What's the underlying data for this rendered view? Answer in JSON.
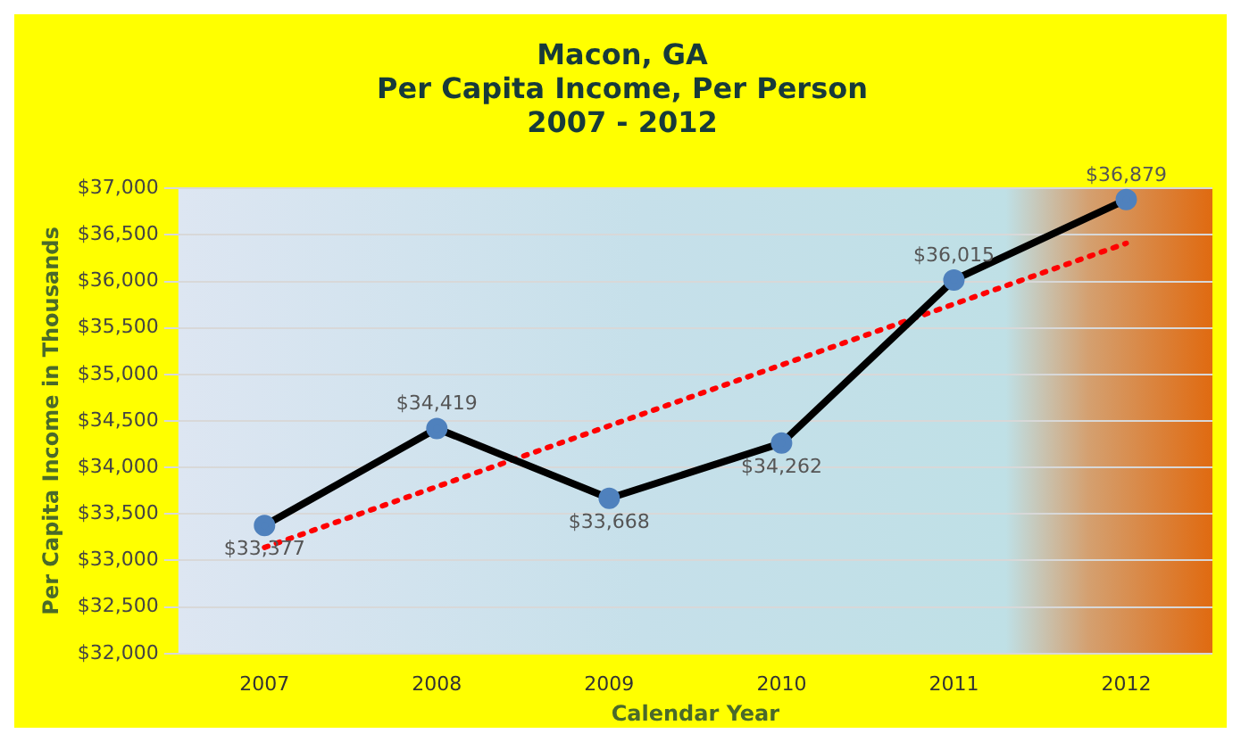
{
  "chart_data": {
    "type": "line",
    "title": "Macon, GA\nPer Capita Income, Per Person\n2007 - 2012",
    "xlabel": "Calendar Year",
    "ylabel": "Per Capita Income in Thousands",
    "categories": [
      "2007",
      "2008",
      "2009",
      "2010",
      "2011",
      "2012"
    ],
    "series": [
      {
        "color": "#000000",
        "values": [
          33377,
          34419,
          33668,
          34262,
          36015,
          36879
        ],
        "value_labels": [
          "$33,377",
          "$34,419",
          "$33,668",
          "$34,262",
          "$36,015",
          "$36,879"
        ]
      },
      {
        "type": "line",
        "color": "#ff0000",
        "values": [
          33140,
          null,
          null,
          null,
          null,
          36410
        ],
        "marker": "none",
        "line_style": "dotted"
      }
    ],
    "ylim": [
      32000,
      37000
    ],
    "yticks": [
      {
        "value": 32000,
        "label": "$32,000"
      },
      {
        "value": 32500,
        "label": "$32,500"
      },
      {
        "value": 33000,
        "label": "$33,000"
      },
      {
        "value": 33500,
        "label": "$33,500"
      },
      {
        "value": 34000,
        "label": "$34,000"
      },
      {
        "value": 34500,
        "label": "$34,500"
      },
      {
        "value": 35000,
        "label": "$35,000"
      },
      {
        "value": 35500,
        "label": "$35,500"
      },
      {
        "value": 36000,
        "label": "$36,000"
      },
      {
        "value": 36500,
        "label": "$36,500"
      },
      {
        "value": 37000,
        "label": "$37,000"
      }
    ],
    "grid": "y",
    "legend": false,
    "marker": "circle",
    "line_style": "solid"
  }
}
